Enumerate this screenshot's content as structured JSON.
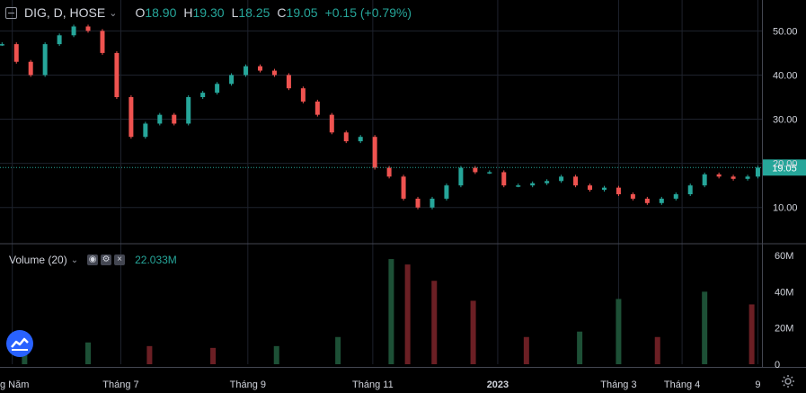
{
  "legend": {
    "symbol": "DIG, D, HOSE",
    "o_label": "O",
    "o_value": "18.90",
    "h_label": "H",
    "h_value": "19.30",
    "l_label": "L",
    "l_value": "18.25",
    "c_label": "C",
    "c_value": "19.05",
    "change": "+0.15 (+0.79%)"
  },
  "volume_legend": {
    "name": "Volume (20)",
    "value": "22.033M"
  },
  "colors": {
    "up": "#26a69a",
    "down": "#ef5350",
    "vol_up": "#1d5036",
    "vol_down": "#6b1f24",
    "grid": "#1e222d",
    "axis_text": "#d1d4dc",
    "price_line": "#26a69a"
  },
  "chart_data": [
    {
      "type": "candlestick",
      "title": "DIG, D, HOSE",
      "ylim": [
        2,
        57
      ],
      "y_ticks": [
        "50.00",
        "40.00",
        "30.00",
        "20.00",
        "10.00"
      ],
      "last_price": "19.05",
      "series": [
        {
          "date": "2022-05-04",
          "close": 47.0
        },
        {
          "date": "2022-05-11",
          "close": 43.0
        },
        {
          "date": "2022-05-18",
          "close": 40.0
        },
        {
          "date": "2022-05-25",
          "close": 47.0
        },
        {
          "date": "2022-06-01",
          "close": 49.0
        },
        {
          "date": "2022-06-08",
          "close": 51.0
        },
        {
          "date": "2022-06-15",
          "close": 50.0
        },
        {
          "date": "2022-06-22",
          "close": 45.0
        },
        {
          "date": "2022-06-29",
          "close": 35.0
        },
        {
          "date": "2022-07-06",
          "close": 26.0
        },
        {
          "date": "2022-07-13",
          "close": 29.0
        },
        {
          "date": "2022-07-20",
          "close": 31.0
        },
        {
          "date": "2022-07-27",
          "close": 29.0
        },
        {
          "date": "2022-08-03",
          "close": 35.0
        },
        {
          "date": "2022-08-10",
          "close": 36.0
        },
        {
          "date": "2022-08-17",
          "close": 38.0
        },
        {
          "date": "2022-08-24",
          "close": 40.0
        },
        {
          "date": "2022-08-31",
          "close": 42.0
        },
        {
          "date": "2022-09-07",
          "close": 41.0
        },
        {
          "date": "2022-09-14",
          "close": 40.0
        },
        {
          "date": "2022-09-21",
          "close": 37.0
        },
        {
          "date": "2022-09-28",
          "close": 34.0
        },
        {
          "date": "2022-10-05",
          "close": 31.0
        },
        {
          "date": "2022-10-12",
          "close": 27.0
        },
        {
          "date": "2022-10-19",
          "close": 25.0
        },
        {
          "date": "2022-10-26",
          "close": 26.0
        },
        {
          "date": "2022-11-02",
          "close": 19.0
        },
        {
          "date": "2022-11-09",
          "close": 17.0
        },
        {
          "date": "2022-11-16",
          "close": 12.0
        },
        {
          "date": "2022-11-23",
          "close": 10.0
        },
        {
          "date": "2022-11-30",
          "close": 12.0
        },
        {
          "date": "2022-12-07",
          "close": 15.0
        },
        {
          "date": "2022-12-14",
          "close": 19.0
        },
        {
          "date": "2022-12-21",
          "close": 18.0
        },
        {
          "date": "2022-12-28",
          "close": 18.0
        },
        {
          "date": "2023-01-04",
          "close": 15.0
        },
        {
          "date": "2023-01-11",
          "close": 15.0
        },
        {
          "date": "2023-01-18",
          "close": 15.5
        },
        {
          "date": "2023-01-25",
          "close": 16.0
        },
        {
          "date": "2023-02-01",
          "close": 17.0
        },
        {
          "date": "2023-02-08",
          "close": 15.0
        },
        {
          "date": "2023-02-15",
          "close": 14.0
        },
        {
          "date": "2023-02-22",
          "close": 14.5
        },
        {
          "date": "2023-03-01",
          "close": 13.0
        },
        {
          "date": "2023-03-08",
          "close": 12.0
        },
        {
          "date": "2023-03-15",
          "close": 11.0
        },
        {
          "date": "2023-03-22",
          "close": 12.0
        },
        {
          "date": "2023-03-29",
          "close": 13.0
        },
        {
          "date": "2023-04-05",
          "close": 15.0
        },
        {
          "date": "2023-04-12",
          "close": 17.5
        },
        {
          "date": "2023-04-19",
          "close": 17.0
        },
        {
          "date": "2023-04-26",
          "close": 16.5
        },
        {
          "date": "2023-05-03",
          "close": 17.0
        },
        {
          "date": "2023-05-08",
          "close": 19.05
        }
      ]
    },
    {
      "type": "bar",
      "title": "Volume (20)",
      "ylim": [
        0,
        62
      ],
      "y_ticks": [
        "60M",
        "40M",
        "20M",
        "0"
      ],
      "unit": "M",
      "series": [
        {
          "date": "2022-05-15",
          "volume": 10
        },
        {
          "date": "2022-06-15",
          "volume": 12
        },
        {
          "date": "2022-07-15",
          "volume": 10
        },
        {
          "date": "2022-08-15",
          "volume": 9
        },
        {
          "date": "2022-09-15",
          "volume": 10
        },
        {
          "date": "2022-10-15",
          "volume": 15
        },
        {
          "date": "2022-11-10",
          "volume": 58
        },
        {
          "date": "2022-11-18",
          "volume": 55
        },
        {
          "date": "2022-12-01",
          "volume": 46
        },
        {
          "date": "2022-12-20",
          "volume": 35
        },
        {
          "date": "2023-01-15",
          "volume": 15
        },
        {
          "date": "2023-02-10",
          "volume": 18
        },
        {
          "date": "2023-03-01",
          "volume": 36
        },
        {
          "date": "2023-03-20",
          "volume": 15
        },
        {
          "date": "2023-04-12",
          "volume": 40
        },
        {
          "date": "2023-05-05",
          "volume": 33
        }
      ]
    }
  ],
  "x_axis": {
    "labels": [
      {
        "date": "2022-05-09",
        "text": "g Năm"
      },
      {
        "date": "2022-07-01",
        "text": "Tháng 7"
      },
      {
        "date": "2022-09-01",
        "text": "Tháng 9"
      },
      {
        "date": "2022-11-01",
        "text": "Tháng 11"
      },
      {
        "date": "2023-01-01",
        "text": "2023"
      },
      {
        "date": "2023-03-01",
        "text": "Tháng 3"
      },
      {
        "date": "2023-04-01",
        "text": "Tháng 4"
      },
      {
        "date": "2023-05-08",
        "text": "9"
      }
    ]
  }
}
